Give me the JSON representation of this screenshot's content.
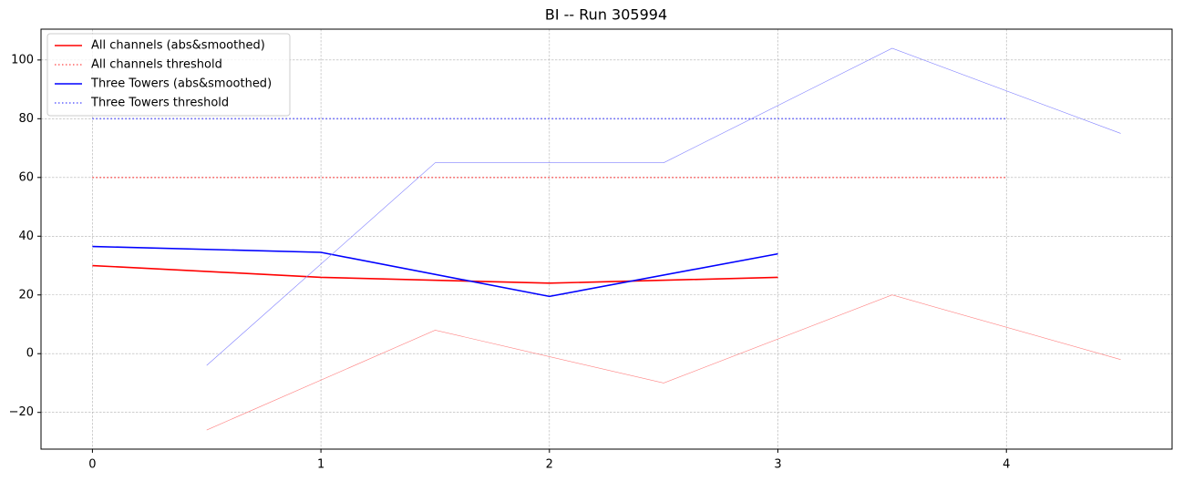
{
  "chart_data": {
    "type": "line",
    "title": "BI -- Run 305994",
    "xlim": [
      -0.225,
      4.725
    ],
    "ylim": [
      -32.5,
      110.5
    ],
    "xticks": [
      0,
      1,
      2,
      3,
      4
    ],
    "yticks": [
      {
        "value": -20,
        "label": "−20"
      },
      0,
      20,
      40,
      60,
      80,
      100
    ],
    "grid": true,
    "legend": "upper left",
    "series": [
      {
        "name": "All channels (abs&smoothed)",
        "color": "#ff0000",
        "style": "solid",
        "width": 1.6,
        "x": [
          0,
          1,
          2,
          3
        ],
        "values": [
          30,
          26,
          24,
          26
        ]
      },
      {
        "name": "All channels threshold",
        "color": "#ff6666",
        "style": "dotted",
        "width": 1.6,
        "x": [
          0,
          4
        ],
        "values": [
          60,
          60
        ]
      },
      {
        "name": "Three Towers (abs&smoothed)",
        "color": "#0000ff",
        "style": "solid",
        "width": 1.6,
        "x": [
          0,
          1,
          2,
          3
        ],
        "values": [
          36.5,
          34.5,
          19.5,
          34
        ]
      },
      {
        "name": "Three Towers threshold",
        "color": "#6666ff",
        "style": "dotted",
        "width": 1.6,
        "x": [
          0,
          4
        ],
        "values": [
          80,
          80
        ]
      },
      {
        "color": "#ff8080",
        "style": "solid",
        "width": 0.6,
        "x": [
          0.5,
          1.5,
          2.5,
          3.5,
          4.5
        ],
        "values": [
          -26,
          8,
          -10,
          20,
          -2
        ]
      },
      {
        "color": "#8080ff",
        "style": "solid",
        "width": 0.6,
        "x": [
          0.5,
          1.5,
          2.5,
          3.5,
          4.5
        ],
        "values": [
          -4,
          65,
          65,
          104,
          75
        ]
      }
    ]
  }
}
